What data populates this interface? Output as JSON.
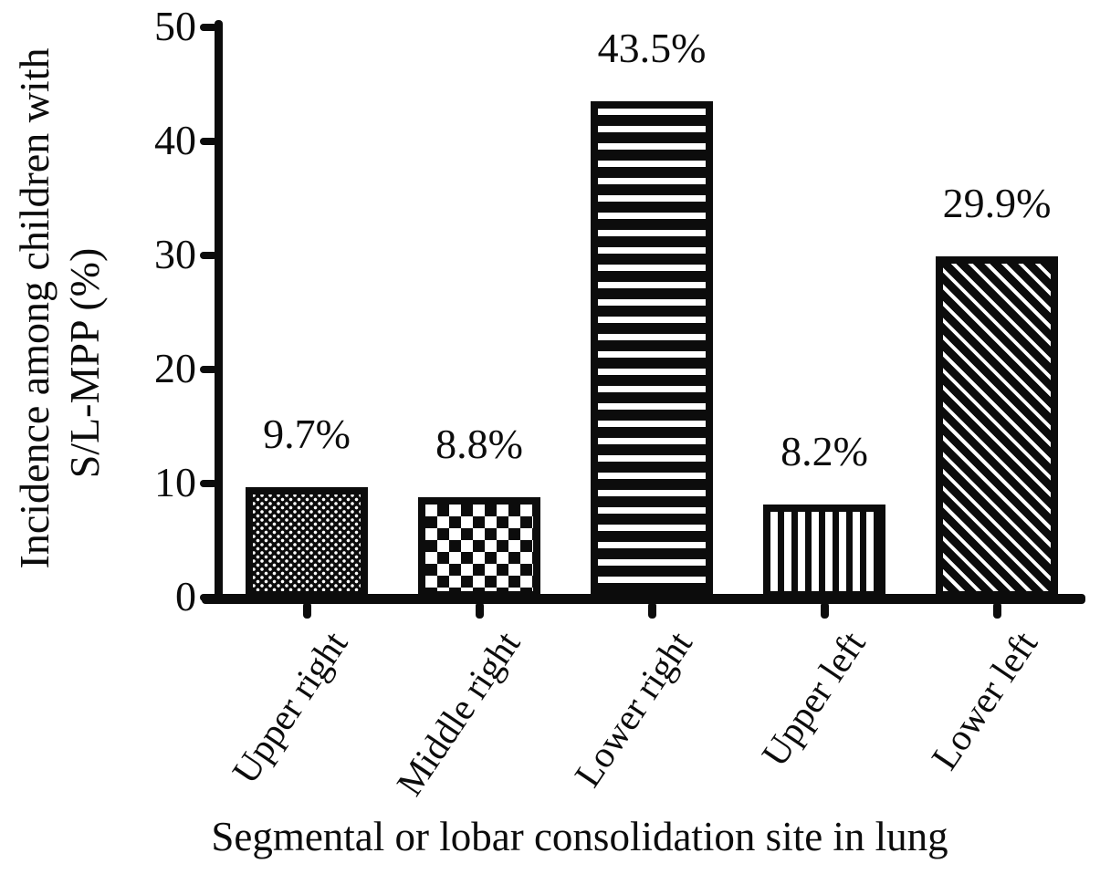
{
  "chart_data": {
    "type": "bar",
    "title": "",
    "categories": [
      "Upper right",
      "Middle right",
      "Lower right",
      "Upper left",
      "Lower left"
    ],
    "values": [
      9.7,
      8.8,
      43.5,
      8.2,
      29.9
    ],
    "data_labels": [
      "9.7%",
      "8.8%",
      "43.5%",
      "8.2%",
      "29.9%"
    ],
    "xlabel": "Segmental or lobar consolidation site in lung",
    "ylabel": "Incidence among children with S/L-MPP (%)",
    "ylabel_lines": [
      "Incidence among children with",
      "S/L-MPP (%)"
    ],
    "yticks": [
      0,
      10,
      20,
      30,
      40,
      50
    ],
    "ylim": [
      0,
      50
    ],
    "grid": false,
    "legend": "none",
    "bar_patterns": [
      "fine-dots",
      "checkerboard",
      "horizontal-stripes",
      "vertical-stripes",
      "diagonal-stripes"
    ],
    "bar_color": "#0c0c0c",
    "background": "#ffffff"
  }
}
